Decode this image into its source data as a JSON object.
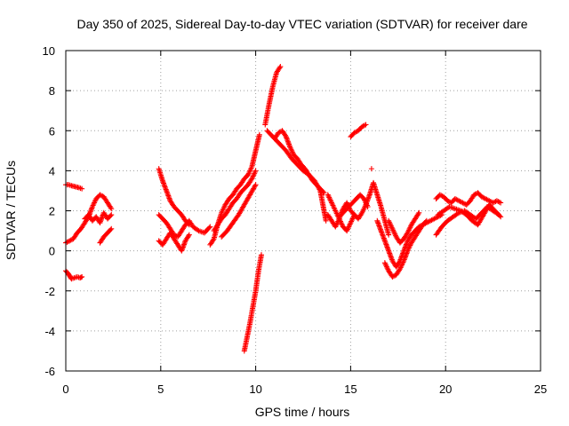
{
  "chart_data": {
    "type": "scatter",
    "title": "Day 350 of 2025, Sidereal Day-to-day VTEC variation (SDTVAR) for receiver dare",
    "xlabel": "GPS time / hours",
    "ylabel": "SDTVAR / TECUs",
    "xlim": [
      0,
      25
    ],
    "ylim": [
      -6,
      10
    ],
    "xticks": [
      0,
      5,
      10,
      15,
      20,
      25
    ],
    "yticks": [
      -6,
      -4,
      -2,
      0,
      2,
      4,
      6,
      8,
      10
    ],
    "grid": true,
    "marker": "+",
    "marker_color": "#ff0000",
    "segments": [
      {
        "x": [
          0.0,
          0.15,
          0.3,
          0.5,
          0.7,
          0.85
        ],
        "y": [
          3.3,
          3.3,
          3.25,
          3.2,
          3.15,
          3.1
        ]
      },
      {
        "x": [
          0.0,
          0.1,
          0.2,
          0.3,
          0.45,
          0.6,
          0.75,
          0.85
        ],
        "y": [
          -1.0,
          -1.1,
          -1.25,
          -1.4,
          -1.35,
          -1.3,
          -1.35,
          -1.3
        ]
      },
      {
        "x": [
          0.0,
          0.2,
          0.4,
          0.6,
          0.8,
          1.0,
          1.2,
          1.4,
          1.6,
          1.8,
          2.0,
          2.2,
          2.4
        ],
        "y": [
          0.4,
          0.5,
          0.6,
          0.9,
          1.1,
          1.4,
          1.7,
          2.2,
          2.6,
          2.8,
          2.7,
          2.4,
          2.1
        ]
      },
      {
        "x": [
          1.0,
          1.2,
          1.4,
          1.6,
          1.8,
          2.0,
          2.2,
          2.4
        ],
        "y": [
          1.6,
          1.8,
          1.5,
          1.7,
          1.4,
          1.9,
          1.6,
          1.8
        ]
      },
      {
        "x": [
          1.8,
          2.0,
          2.2,
          2.4
        ],
        "y": [
          0.4,
          0.7,
          0.9,
          1.1
        ]
      },
      {
        "x": [
          4.9,
          5.1,
          5.3,
          5.5,
          5.7,
          5.9,
          6.1,
          6.3,
          6.5
        ],
        "y": [
          4.1,
          3.5,
          3.0,
          2.5,
          2.2,
          2.0,
          1.8,
          1.5,
          1.3
        ]
      },
      {
        "x": [
          4.9,
          5.1,
          5.3,
          5.5,
          5.7,
          5.9,
          6.1,
          6.3,
          6.5,
          6.7,
          7.0,
          7.3,
          7.6
        ],
        "y": [
          1.8,
          1.6,
          1.4,
          1.1,
          0.8,
          0.7,
          1.0,
          1.3,
          1.5,
          1.2,
          1.0,
          0.9,
          1.2
        ]
      },
      {
        "x": [
          4.9,
          5.1,
          5.3,
          5.5,
          5.7,
          5.9,
          6.1,
          6.3,
          6.5
        ],
        "y": [
          0.5,
          0.3,
          0.6,
          0.9,
          0.6,
          0.3,
          0.0,
          0.5,
          0.8
        ]
      },
      {
        "x": [
          7.6,
          7.8,
          8.0,
          8.2,
          8.4,
          8.6,
          8.8,
          9.0,
          9.2,
          9.4,
          9.6,
          9.8,
          10.0,
          10.2
        ],
        "y": [
          0.3,
          0.6,
          1.3,
          1.9,
          2.3,
          2.6,
          2.8,
          3.1,
          3.3,
          3.6,
          3.8,
          4.2,
          5.0,
          5.8
        ]
      },
      {
        "x": [
          7.8,
          8.0,
          8.2,
          8.4,
          8.6,
          8.8,
          9.0,
          9.2,
          9.4,
          9.6,
          9.8,
          10.0
        ],
        "y": [
          1.0,
          1.3,
          1.6,
          1.8,
          2.1,
          2.4,
          2.6,
          2.9,
          3.1,
          3.3,
          3.6,
          4.0
        ]
      },
      {
        "x": [
          8.2,
          8.5,
          8.8,
          9.1,
          9.4,
          9.7,
          10.0
        ],
        "y": [
          0.7,
          1.0,
          1.4,
          1.8,
          2.3,
          2.8,
          3.3
        ]
      },
      {
        "x": [
          9.4,
          9.55,
          9.7,
          9.85,
          10.0,
          10.15,
          10.3
        ],
        "y": [
          -5.0,
          -4.3,
          -3.6,
          -2.8,
          -2.0,
          -1.0,
          -0.2
        ]
      },
      {
        "x": [
          10.5,
          10.7,
          10.9,
          11.1,
          11.3
        ],
        "y": [
          6.3,
          7.3,
          8.2,
          8.9,
          9.2
        ]
      },
      {
        "x": [
          10.6,
          10.8,
          11.0,
          11.2,
          11.4,
          11.6,
          11.8,
          12.0,
          12.2,
          12.4,
          12.6,
          12.8,
          13.0,
          13.2,
          13.4,
          13.6
        ],
        "y": [
          6.0,
          5.8,
          5.6,
          5.9,
          6.0,
          5.7,
          5.2,
          4.8,
          4.6,
          4.3,
          4.1,
          3.8,
          3.5,
          3.3,
          3.1,
          2.9
        ]
      },
      {
        "x": [
          11.0,
          11.3,
          11.6,
          11.9,
          12.2,
          12.5,
          12.8,
          13.1,
          13.4,
          13.7
        ],
        "y": [
          5.6,
          5.3,
          5.0,
          4.6,
          4.3,
          4.0,
          3.8,
          3.5,
          3.0,
          1.5
        ]
      },
      {
        "x": [
          14.5,
          14.7,
          14.9,
          15.1,
          15.3,
          15.5,
          15.7,
          15.9
        ],
        "y": [
          1.8,
          2.0,
          2.2,
          2.4,
          2.6,
          2.8,
          2.6,
          2.2
        ]
      },
      {
        "x": [
          13.8,
          14.0,
          14.2,
          14.4,
          14.6,
          14.8,
          15.0,
          15.2
        ],
        "y": [
          2.8,
          2.4,
          2.0,
          1.6,
          1.2,
          1.0,
          1.4,
          1.8
        ]
      },
      {
        "x": [
          13.8,
          14.0,
          14.2,
          14.4,
          14.6,
          14.8,
          15.0,
          15.2,
          15.4,
          15.6,
          15.8,
          16.0,
          16.2,
          16.4,
          16.6,
          16.8,
          17.0
        ],
        "y": [
          1.8,
          1.5,
          1.2,
          1.6,
          2.1,
          2.4,
          2.0,
          1.8,
          1.6,
          1.9,
          2.3,
          2.8,
          3.4,
          2.8,
          2.2,
          1.5,
          0.8
        ]
      },
      {
        "x": [
          15.0,
          15.2,
          15.4,
          15.6,
          15.8
        ],
        "y": [
          5.7,
          5.9,
          6.0,
          6.2,
          6.3
        ]
      },
      {
        "x": [
          16.4,
          16.6,
          16.8,
          17.0,
          17.2,
          17.4,
          17.6,
          17.8,
          18.0,
          18.2,
          18.4,
          18.6,
          18.8,
          19.0,
          19.2,
          19.4,
          19.6,
          19.8
        ],
        "y": [
          1.5,
          1.0,
          0.5,
          0.0,
          -0.5,
          -0.8,
          -0.5,
          0.0,
          0.5,
          0.8,
          1.0,
          1.2,
          1.3,
          1.4,
          1.5,
          1.6,
          1.7,
          1.8
        ]
      },
      {
        "x": [
          16.8,
          17.0,
          17.2,
          17.4,
          17.6,
          17.8,
          18.0,
          18.2,
          18.4,
          18.6,
          18.8,
          19.0
        ],
        "y": [
          -0.6,
          -1.0,
          -1.3,
          -1.2,
          -0.9,
          -0.5,
          0.0,
          0.4,
          0.7,
          1.0,
          1.3,
          1.5
        ]
      },
      {
        "x": [
          17.0,
          17.2,
          17.4,
          17.6,
          17.8,
          18.0,
          18.2,
          18.4,
          18.6
        ],
        "y": [
          1.5,
          1.1,
          0.7,
          0.4,
          0.6,
          0.9,
          1.3,
          1.6,
          1.9
        ]
      },
      {
        "x": [
          19.5,
          19.7,
          19.9,
          20.1,
          20.3,
          20.5,
          20.7,
          20.9,
          21.1,
          21.3,
          21.5,
          21.7,
          21.9,
          22.1,
          22.3,
          22.5,
          22.7,
          22.9
        ],
        "y": [
          2.6,
          2.8,
          2.7,
          2.5,
          2.4,
          2.6,
          2.5,
          2.4,
          2.3,
          2.5,
          2.8,
          2.9,
          2.7,
          2.6,
          2.5,
          2.4,
          2.5,
          2.4
        ]
      },
      {
        "x": [
          19.5,
          19.8,
          20.1,
          20.4,
          20.7,
          21.0,
          21.3,
          21.6,
          21.9,
          22.2,
          22.5,
          22.8
        ],
        "y": [
          0.8,
          1.2,
          1.5,
          1.7,
          1.9,
          2.0,
          1.8,
          1.6,
          1.9,
          2.2,
          2.0,
          1.8
        ]
      },
      {
        "x": [
          19.6,
          19.9,
          20.2,
          20.5,
          20.8,
          21.1,
          21.4,
          21.7,
          22.0,
          22.3,
          22.6,
          22.9
        ],
        "y": [
          1.8,
          2.0,
          2.2,
          2.1,
          2.0,
          1.8,
          1.5,
          1.3,
          1.8,
          2.3,
          2.0,
          1.7
        ]
      }
    ],
    "isolated_points": {
      "x": [
        16.1
      ],
      "y": [
        4.1
      ]
    }
  }
}
